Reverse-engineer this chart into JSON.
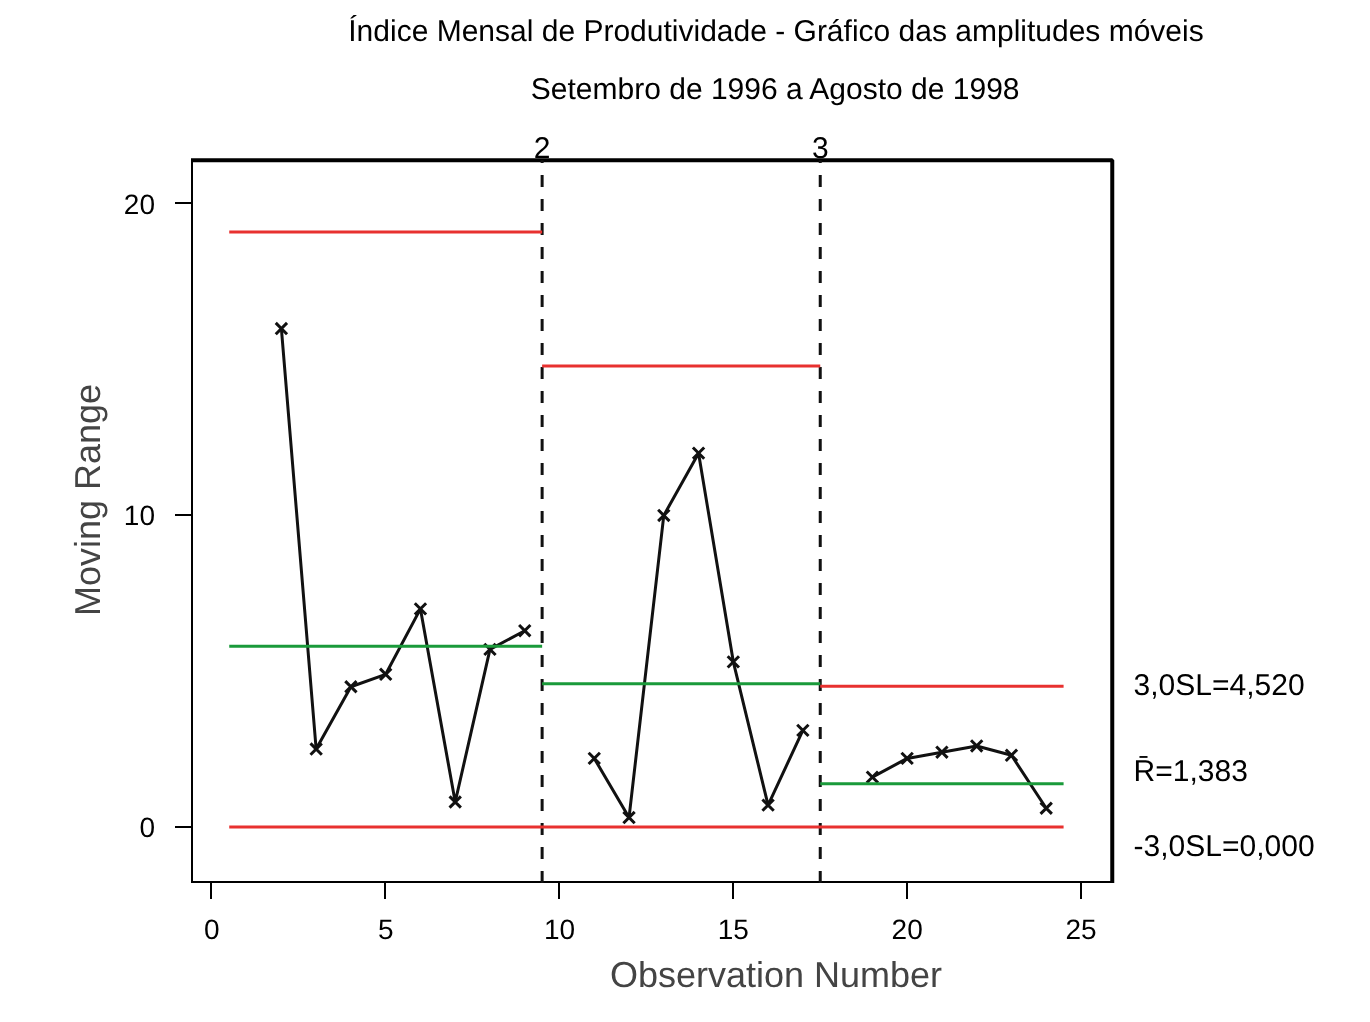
{
  "chart_data": {
    "type": "line",
    "title": "Índice Mensal de Produtividade - Gráfico das amplitudes móveis",
    "subtitle": "Setembro de 1996 a Agosto de 1998",
    "xlabel": "Observation Number",
    "ylabel": "Moving Range",
    "xlim": [
      -0.6,
      25.9
    ],
    "ylim": [
      -1.8,
      21.4
    ],
    "xticks": [
      0,
      5,
      10,
      15,
      20,
      25
    ],
    "yticks": [
      0,
      10,
      20
    ],
    "grid": false,
    "series": [
      {
        "color": "#111111",
        "marker": "cross",
        "x": [
          2,
          3,
          4,
          5,
          6,
          7,
          8,
          9,
          10,
          11,
          12,
          13,
          14,
          15,
          16,
          17,
          18,
          19,
          20,
          21,
          22,
          23,
          24
        ],
        "values": [
          16.0,
          2.5,
          4.5,
          4.9,
          7.0,
          0.8,
          5.7,
          6.3,
          null,
          2.2,
          0.3,
          10.0,
          12.0,
          5.3,
          0.7,
          3.1,
          null,
          1.6,
          2.2,
          2.4,
          2.6,
          2.3,
          0.6
        ]
      },
      {
        "color": "#e8312f",
        "marker": "none",
        "x": [
          0.5,
          9.5
        ],
        "values": [
          19.1,
          19.1
        ]
      },
      {
        "color": "#1a9a3a",
        "marker": "none",
        "x": [
          0.5,
          9.5
        ],
        "values": [
          5.8,
          5.8
        ]
      },
      {
        "color": "#e8312f",
        "marker": "none",
        "x": [
          9.5,
          17.5
        ],
        "values": [
          14.8,
          14.8
        ]
      },
      {
        "color": "#1a9a3a",
        "marker": "none",
        "x": [
          9.5,
          17.5
        ],
        "values": [
          4.6,
          4.6
        ]
      },
      {
        "color": "#e8312f",
        "marker": "none",
        "x": [
          17.5,
          24.5
        ],
        "values": [
          4.52,
          4.52
        ]
      },
      {
        "color": "#1a9a3a",
        "marker": "none",
        "x": [
          17.5,
          24.5
        ],
        "values": [
          1.383,
          1.383
        ]
      },
      {
        "color": "#e8312f",
        "marker": "none",
        "x": [
          0.5,
          24.5
        ],
        "values": [
          0,
          0
        ]
      }
    ],
    "ref_lines": [
      {
        "axis": "x",
        "value": 9.5,
        "color": "#111111",
        "line_style": "dashed"
      },
      {
        "axis": "x",
        "value": 17.5,
        "color": "#111111",
        "line_style": "dashed"
      }
    ],
    "annotations": [
      {
        "text": "2",
        "x": 9.5,
        "y": 21.4
      },
      {
        "text": "3",
        "x": 17.5,
        "y": 21.4
      },
      {
        "text": "3,0SL=4,520",
        "x": 24.5,
        "y": 4.52
      },
      {
        "text": "R̄=1,383",
        "x": 24.5,
        "y": 1.383
      },
      {
        "text": "-3,0SL=0,000",
        "x": 24.5,
        "y": 0
      }
    ]
  }
}
